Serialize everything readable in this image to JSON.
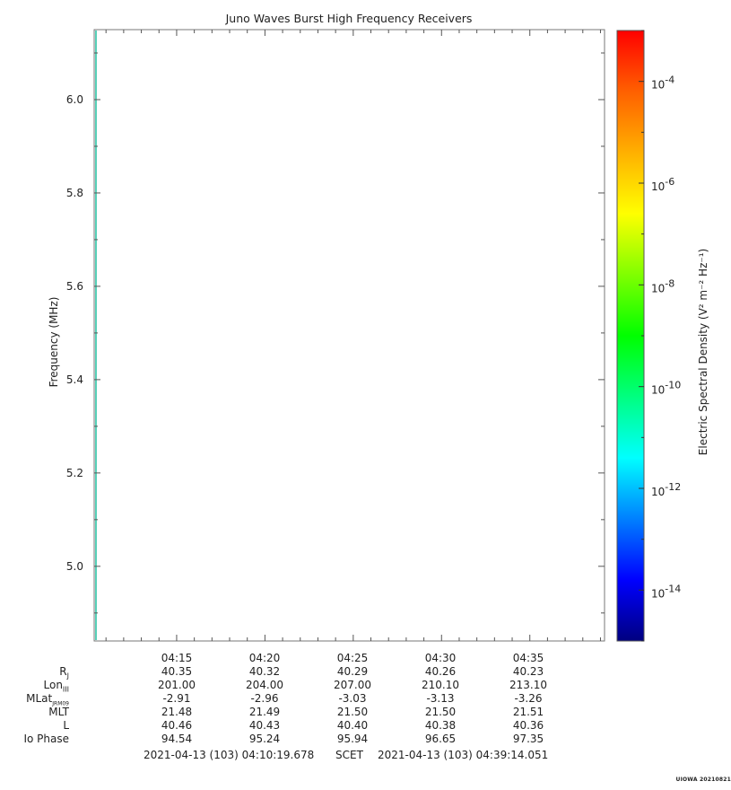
{
  "chart_data": {
    "type": "heatmap",
    "title": "Juno Waves Burst High Frequency Receivers",
    "ylabel": "Frequency (MHz)",
    "ylim": [
      4.84,
      6.15
    ],
    "y_ticks": [
      {
        "v": 5.0,
        "label": "5.0"
      },
      {
        "v": 5.2,
        "label": "5.2"
      },
      {
        "v": 5.4,
        "label": "5.4"
      },
      {
        "v": 5.6,
        "label": "5.6"
      },
      {
        "v": 5.8,
        "label": "5.8"
      },
      {
        "v": 6.0,
        "label": "6.0"
      }
    ],
    "xlim_minutes": [
      610.33,
      639.23
    ],
    "x_ticks": [
      {
        "v": 615,
        "label": "04:15"
      },
      {
        "v": 620,
        "label": "04:20"
      },
      {
        "v": 625,
        "label": "04:25"
      },
      {
        "v": 630,
        "label": "04:30"
      },
      {
        "v": 635,
        "label": "04:35"
      }
    ],
    "data_note": "",
    "colorbar": {
      "label": "Electric Spectral Density (V² m⁻² Hz⁻¹)",
      "log_range": [
        -15.0,
        -3.0
      ],
      "ticks": [
        {
          "exp": -4,
          "label": "-4"
        },
        {
          "exp": -6,
          "label": "-6"
        },
        {
          "exp": -8,
          "label": "-8"
        },
        {
          "exp": -10,
          "label": "-10"
        },
        {
          "exp": -12,
          "label": "-12"
        },
        {
          "exp": -14,
          "label": "-14"
        }
      ],
      "colors": [
        "#000080",
        "#0000ff",
        "#0080ff",
        "#00ffff",
        "#00ff80",
        "#00ff00",
        "#80ff00",
        "#ffff00",
        "#ffb000",
        "#ff6000",
        "#ff0000"
      ]
    }
  },
  "ephemeris": {
    "rows": [
      {
        "label": "R",
        "sub": "J",
        "values": [
          "40.35",
          "40.32",
          "40.29",
          "40.26",
          "40.23"
        ]
      },
      {
        "label": "Lon",
        "sub": "III",
        "values": [
          "201.00",
          "204.00",
          "207.00",
          "210.10",
          "213.10"
        ]
      },
      {
        "label": "MLat",
        "sub": "JRM09",
        "values": [
          "-2.91",
          "-2.96",
          "-3.03",
          "-3.13",
          "-3.26"
        ]
      },
      {
        "label": "MLT",
        "sub": "",
        "values": [
          "21.48",
          "21.49",
          "21.50",
          "21.50",
          "21.51"
        ]
      },
      {
        "label": "L",
        "sub": "",
        "values": [
          "40.46",
          "40.43",
          "40.40",
          "40.38",
          "40.36"
        ]
      },
      {
        "label": "Io Phase",
        "sub": "",
        "values": [
          "94.54",
          "95.24",
          "95.94",
          "96.65",
          "97.35"
        ]
      }
    ],
    "time_labels": [
      "04:15",
      "04:20",
      "04:25",
      "04:30",
      "04:35"
    ]
  },
  "footer": {
    "start": "2021-04-13 (103) 04:10:19.678",
    "scet": "SCET",
    "end": "2021-04-13 (103) 04:39:14.051"
  },
  "stamp": "UIOWA 20210821"
}
